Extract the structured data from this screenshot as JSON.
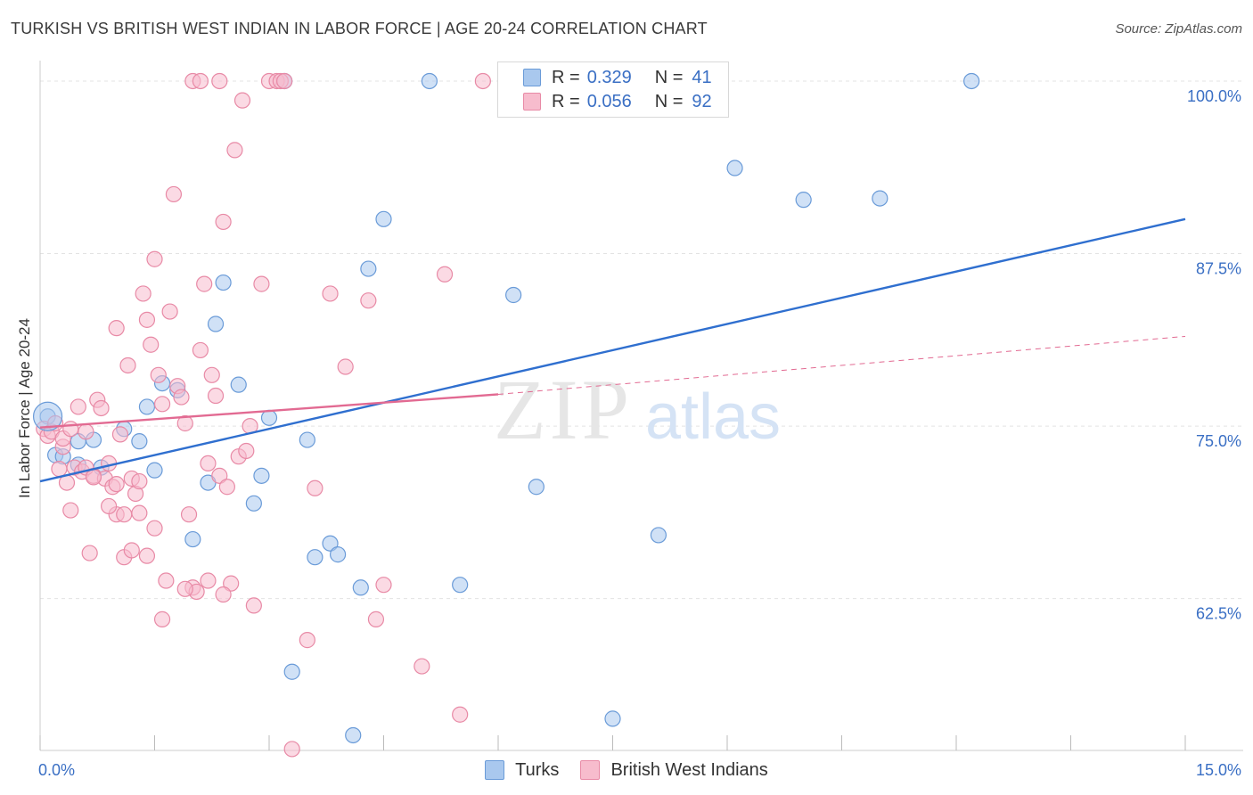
{
  "title": "TURKISH VS BRITISH WEST INDIAN IN LABOR FORCE | AGE 20-24 CORRELATION CHART",
  "source": "Source: ZipAtlas.com",
  "watermark": {
    "zip": "ZIP",
    "atlas": "atlas"
  },
  "legend_top": {
    "turks": {
      "r_label": "R =",
      "r_value": "0.329",
      "n_label": "N =",
      "n_value": "41"
    },
    "bwi": {
      "r_label": "R =",
      "r_value": "0.056",
      "n_label": "N =",
      "n_value": "92"
    }
  },
  "colors": {
    "turks_fill": "#a9c8ee",
    "turks_stroke": "#6a9bd8",
    "turks_line": "#2f6fcf",
    "bwi_fill": "#f7bccd",
    "bwi_stroke": "#e88aa6",
    "bwi_line": "#e26a92",
    "grid": "#e3e3e3",
    "tick_text": "#3a6fc4"
  },
  "chart_data": {
    "type": "scatter",
    "title": "TURKISH VS BRITISH WEST INDIAN IN LABOR FORCE | AGE 20-24 CORRELATION CHART",
    "xlabel": "",
    "ylabel": "In Labor Force | Age 20-24",
    "xlim": [
      0,
      15
    ],
    "ylim": [
      51.5,
      102
    ],
    "x_tick_labels": [
      {
        "value": 0,
        "label": "0.0%"
      },
      {
        "value": 15,
        "label": "15.0%"
      }
    ],
    "y_tick_labels": [
      {
        "value": 100,
        "label": "100.0%"
      },
      {
        "value": 87.5,
        "label": "87.5%"
      },
      {
        "value": 75,
        "label": "75.0%"
      },
      {
        "value": 62.5,
        "label": "62.5%"
      }
    ],
    "legend": [
      "Turks",
      "British West Indians"
    ],
    "series": [
      {
        "name": "Turks",
        "points": [
          [
            0.1,
            75.7
          ],
          [
            0.2,
            72.9
          ],
          [
            0.5,
            73.9
          ],
          [
            0.5,
            72.2
          ],
          [
            0.7,
            74.0
          ],
          [
            0.8,
            72.0
          ],
          [
            1.1,
            74.8
          ],
          [
            1.3,
            73.9
          ],
          [
            1.4,
            76.4
          ],
          [
            1.5,
            71.8
          ],
          [
            1.6,
            78.1
          ],
          [
            1.8,
            77.6
          ],
          [
            2.0,
            66.8
          ],
          [
            2.2,
            70.9
          ],
          [
            2.3,
            82.4
          ],
          [
            2.4,
            85.4
          ],
          [
            2.6,
            78.0
          ],
          [
            2.8,
            69.4
          ],
          [
            2.9,
            71.4
          ],
          [
            3.0,
            75.6
          ],
          [
            3.2,
            100.0
          ],
          [
            3.3,
            57.2
          ],
          [
            3.5,
            74.0
          ],
          [
            3.6,
            65.5
          ],
          [
            3.8,
            66.5
          ],
          [
            3.9,
            65.7
          ],
          [
            4.1,
            52.6
          ],
          [
            4.2,
            63.3
          ],
          [
            4.3,
            86.4
          ],
          [
            4.5,
            90.0
          ],
          [
            5.1,
            100.0
          ],
          [
            5.5,
            63.5
          ],
          [
            6.2,
            84.5
          ],
          [
            6.5,
            70.6
          ],
          [
            7.5,
            53.8
          ],
          [
            8.1,
            67.1
          ],
          [
            9.1,
            93.7
          ],
          [
            10.0,
            91.4
          ],
          [
            11.0,
            91.5
          ],
          [
            12.2,
            100.0
          ],
          [
            0.3,
            72.8
          ]
        ]
      },
      {
        "name": "British West Indians",
        "points": [
          [
            0.05,
            74.8
          ],
          [
            0.1,
            74.3
          ],
          [
            0.15,
            74.6
          ],
          [
            0.2,
            75.2
          ],
          [
            0.25,
            71.9
          ],
          [
            0.3,
            73.5
          ],
          [
            0.35,
            70.9
          ],
          [
            0.4,
            68.9
          ],
          [
            0.45,
            72.0
          ],
          [
            0.5,
            76.4
          ],
          [
            0.55,
            71.7
          ],
          [
            0.6,
            74.6
          ],
          [
            0.65,
            65.8
          ],
          [
            0.7,
            71.4
          ],
          [
            0.75,
            76.9
          ],
          [
            0.8,
            76.3
          ],
          [
            0.85,
            71.2
          ],
          [
            0.9,
            72.3
          ],
          [
            0.95,
            70.6
          ],
          [
            1.0,
            82.1
          ],
          [
            1.0,
            68.6
          ],
          [
            1.05,
            74.4
          ],
          [
            1.1,
            65.5
          ],
          [
            1.15,
            79.4
          ],
          [
            1.2,
            71.2
          ],
          [
            1.25,
            70.1
          ],
          [
            1.3,
            68.7
          ],
          [
            1.35,
            84.6
          ],
          [
            1.4,
            82.7
          ],
          [
            1.45,
            80.9
          ],
          [
            1.5,
            87.1
          ],
          [
            1.55,
            78.7
          ],
          [
            1.6,
            76.6
          ],
          [
            1.65,
            63.8
          ],
          [
            1.7,
            83.3
          ],
          [
            1.75,
            91.8
          ],
          [
            1.8,
            77.9
          ],
          [
            1.85,
            77.1
          ],
          [
            1.9,
            75.2
          ],
          [
            1.95,
            68.6
          ],
          [
            2.0,
            63.3
          ],
          [
            2.05,
            63.0
          ],
          [
            2.1,
            80.5
          ],
          [
            2.15,
            85.3
          ],
          [
            2.2,
            72.3
          ],
          [
            2.25,
            78.7
          ],
          [
            2.3,
            77.2
          ],
          [
            2.35,
            71.4
          ],
          [
            2.4,
            89.8
          ],
          [
            2.45,
            70.6
          ],
          [
            2.5,
            63.6
          ],
          [
            2.55,
            95.0
          ],
          [
            2.6,
            72.8
          ],
          [
            2.65,
            98.6
          ],
          [
            2.7,
            73.2
          ],
          [
            2.75,
            75.0
          ],
          [
            2.8,
            62.0
          ],
          [
            2.9,
            85.3
          ],
          [
            3.0,
            100.0
          ],
          [
            3.1,
            100.0
          ],
          [
            3.15,
            100.0
          ],
          [
            3.2,
            100.0
          ],
          [
            3.3,
            51.6
          ],
          [
            3.5,
            59.5
          ],
          [
            3.6,
            70.5
          ],
          [
            3.8,
            84.6
          ],
          [
            4.0,
            79.3
          ],
          [
            4.3,
            84.1
          ],
          [
            4.4,
            61.0
          ],
          [
            4.5,
            63.5
          ],
          [
            5.0,
            57.6
          ],
          [
            5.3,
            86.0
          ],
          [
            5.5,
            54.1
          ],
          [
            5.8,
            100.0
          ],
          [
            2.0,
            100.0
          ],
          [
            2.1,
            100.0
          ],
          [
            2.35,
            100.0
          ],
          [
            1.6,
            61.0
          ],
          [
            1.2,
            66.0
          ],
          [
            1.4,
            65.6
          ],
          [
            0.9,
            69.2
          ],
          [
            1.1,
            68.6
          ],
          [
            1.3,
            71.0
          ],
          [
            0.6,
            72.0
          ],
          [
            0.7,
            71.3
          ],
          [
            1.0,
            70.8
          ],
          [
            1.5,
            67.6
          ],
          [
            1.9,
            63.2
          ],
          [
            2.2,
            63.8
          ],
          [
            2.4,
            62.8
          ],
          [
            0.3,
            74.1
          ],
          [
            0.4,
            74.8
          ]
        ]
      }
    ],
    "trend_lines": [
      {
        "series": "Turks",
        "x": [
          0,
          15
        ],
        "y": [
          71.0,
          90.0
        ],
        "style": "solid"
      },
      {
        "series": "British West Indians",
        "x": [
          0,
          6
        ],
        "y": [
          74.9,
          77.3
        ],
        "style": "solid"
      },
      {
        "series": "British West Indians",
        "x": [
          6,
          15
        ],
        "y": [
          77.3,
          81.5
        ],
        "style": "dashed"
      }
    ]
  }
}
